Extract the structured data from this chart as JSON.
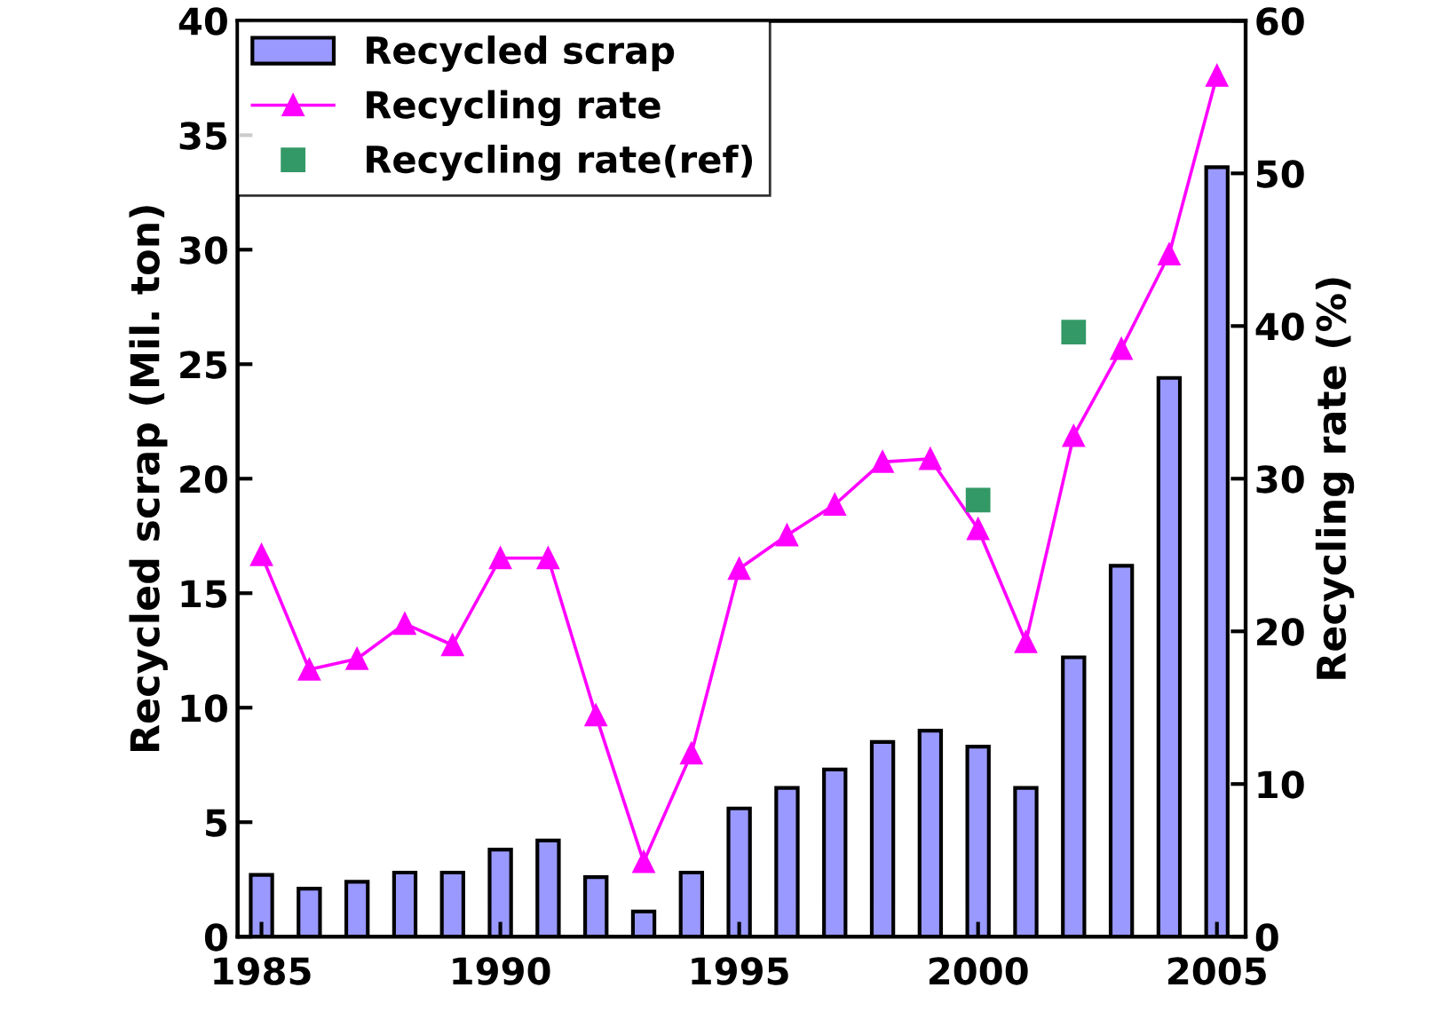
{
  "chart_data": {
    "type": "bar",
    "xlabel": null,
    "ylabel": "Recycled scrap (Mil. ton)",
    "y2label": "Recycling rate (%)",
    "x": [
      1985,
      1986,
      1987,
      1988,
      1989,
      1990,
      1991,
      1992,
      1993,
      1994,
      1995,
      1996,
      1997,
      1998,
      1999,
      2000,
      2001,
      2002,
      2003,
      2004,
      2005
    ],
    "series": [
      {
        "name": "Recycled scrap",
        "color": "#9999ff",
        "values": [
          2.7,
          2.1,
          2.4,
          2.8,
          2.8,
          3.8,
          4.2,
          2.6,
          1.1,
          2.8,
          5.6,
          6.5,
          7.3,
          8.5,
          9.0,
          8.3,
          6.5,
          12.2,
          16.2,
          24.4,
          33.6
        ]
      },
      {
        "name": "Recycling rate",
        "type": "line",
        "axis": "y2",
        "color": "#ff00ff",
        "marker": "triangle",
        "values": [
          25.0,
          17.5,
          18.2,
          20.5,
          19.1,
          24.8,
          24.8,
          14.5,
          4.9,
          12.0,
          24.1,
          26.3,
          28.3,
          31.1,
          31.3,
          26.7,
          19.3,
          32.8,
          38.5,
          44.7,
          56.4
        ]
      },
      {
        "name": "Recycling rate(ref)",
        "type": "scatter",
        "axis": "y2",
        "color": "#339966",
        "marker": "square",
        "x": [
          2000,
          2002
        ],
        "values": [
          28.6,
          39.6
        ]
      }
    ],
    "xlim": [
      1984.5,
      2005.6
    ],
    "xticks": [
      1985,
      1990,
      1995,
      2000,
      2005
    ],
    "ylim": [
      0,
      40
    ],
    "yticks": [
      0,
      5,
      10,
      15,
      20,
      25,
      30,
      35,
      40
    ],
    "y2lim": [
      0,
      60
    ],
    "y2ticks": [
      0,
      10,
      20,
      30,
      40,
      50,
      60
    ],
    "grid": false,
    "legend": "top left"
  }
}
